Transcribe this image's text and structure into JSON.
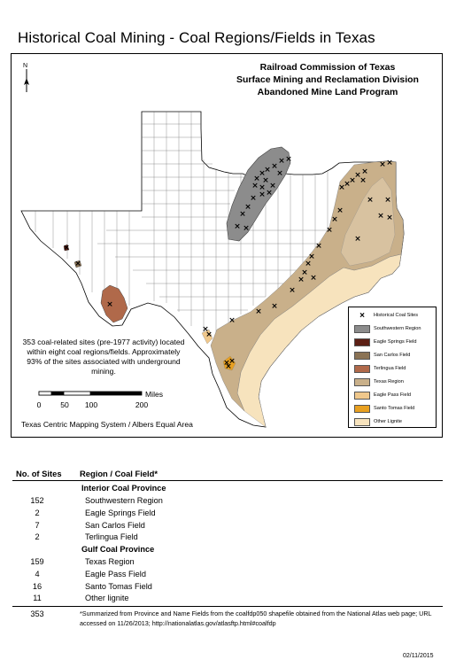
{
  "title": "Historical Coal Mining - Coal Regions/Fields in Texas",
  "agency": {
    "line1": "Railroad Commission of Texas",
    "line2": "Surface Mining and Reclamation Division",
    "line3": "Abandoned Mine Land Program"
  },
  "north_label": "N",
  "note": "353 coal-related sites (pre-1977 activity) located within eight coal regions/fields. Approximately 93% of the sites associated with underground mining.",
  "scale": {
    "units": "Miles",
    "ticks": [
      "0",
      "50",
      "100",
      "200"
    ]
  },
  "projection": "Texas Centric Mapping System / Albers Equal Area",
  "legend": {
    "items": [
      {
        "label": "Historical Coal Sites",
        "color": "none",
        "icon": "x-marker-icon"
      },
      {
        "label": "Southwestern Region",
        "color": "#8c8c8c"
      },
      {
        "label": "Eagle Springs Field",
        "color": "#5c1f14"
      },
      {
        "label": "San Carlos Field",
        "color": "#8b7355"
      },
      {
        "label": "Terlingua Field",
        "color": "#b0694a"
      },
      {
        "label": "Texas Region",
        "color": "#c9b08a"
      },
      {
        "label": "Eagle Pass Field",
        "color": "#f0c88c"
      },
      {
        "label": "Santo Tomas Field",
        "color": "#e8a020"
      },
      {
        "label": "Other Lignite",
        "color": "#f7e3bd"
      }
    ]
  },
  "table": {
    "col1": "No. of Sites",
    "col2": "Region / Coal Field*",
    "interior_label": "Interior Coal Province",
    "interior": [
      {
        "sites": "152",
        "name": "Southwestern Region"
      },
      {
        "sites": "2",
        "name": "Eagle Springs Field"
      },
      {
        "sites": "7",
        "name": "San Carlos Field"
      },
      {
        "sites": "2",
        "name": "Terlingua Field"
      }
    ],
    "gulf_label": "Gulf Coal Province",
    "gulf": [
      {
        "sites": "159",
        "name": "Texas Region"
      },
      {
        "sites": "4",
        "name": "Eagle Pass Field"
      },
      {
        "sites": "16",
        "name": "Santo Tomas Field"
      },
      {
        "sites": "11",
        "name": "Other lignite"
      }
    ],
    "total": "353",
    "footnote": "*Summarized from Province and Name Fields from the coalfdp050 shapefile obtained from the National Atlas web page; URL accessed on 11/26/2013; http://nationalatlas.gov/atlasftp.html#coalfdp"
  },
  "date": "02/11/2015"
}
